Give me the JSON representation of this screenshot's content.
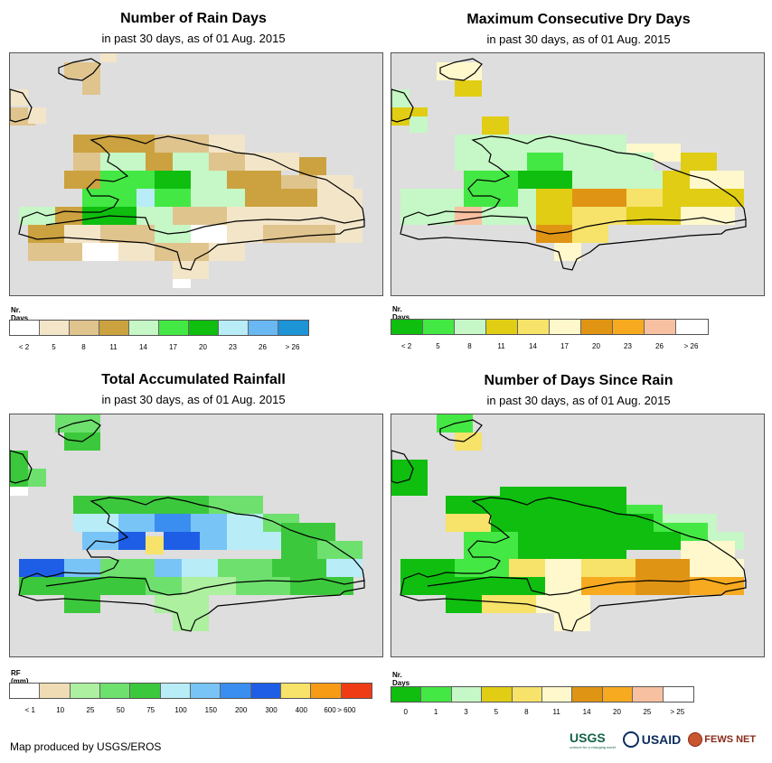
{
  "panels": [
    {
      "id": "rain-days",
      "title": "Number of Rain Days",
      "subtitle": "in past 30 days, as of 01 Aug. 2015",
      "legend_title": "Nr. Days",
      "legend_colors": [
        "#ffffff",
        "#f3e5c8",
        "#e0c48e",
        "#cba23f",
        "#c6f7c6",
        "#44e844",
        "#0fbe0f",
        "#b8ecf7",
        "#6ab8f2",
        "#1c94d6"
      ],
      "legend_labels": [
        "< 2",
        "5",
        "8",
        "11",
        "14",
        "17",
        "20",
        "23",
        "26",
        "> 26"
      ],
      "legend_mode": "center"
    },
    {
      "id": "dry-days",
      "title": "Maximum Consecutive Dry Days",
      "subtitle": "in past 30 days, as of 01 Aug. 2015",
      "legend_title": "Nr. Days",
      "legend_colors": [
        "#0fbe0f",
        "#44e844",
        "#c6f7c6",
        "#e0cd14",
        "#f7e26a",
        "#fff8cc",
        "#e09414",
        "#f7aa20",
        "#f7c0a0",
        "#ffffff"
      ],
      "legend_labels": [
        "< 2",
        "5",
        "8",
        "11",
        "14",
        "17",
        "20",
        "23",
        "26",
        "> 26"
      ],
      "legend_mode": "center"
    },
    {
      "id": "rainfall",
      "title": "Total Accumulated Rainfall",
      "subtitle": "in past 30 days, as of 01 Aug. 2015",
      "legend_title": "RF (mm)",
      "legend_colors": [
        "#ffffff",
        "#f0dcb4",
        "#acf0a0",
        "#6ee06e",
        "#3cc83c",
        "#b8ecf7",
        "#78c4f7",
        "#3a8ef0",
        "#1e5ee6",
        "#f7e26a",
        "#f79a14",
        "#f03c14"
      ],
      "legend_labels": [
        "< 1",
        "10",
        "25",
        "50",
        "75",
        "100",
        "150",
        "200",
        "300",
        "400",
        "600",
        "> 600"
      ],
      "legend_mode": "rainfall"
    },
    {
      "id": "since-rain",
      "title": "Number of Days Since Rain",
      "subtitle": "in past 30 days, as of 01 Aug. 2015",
      "legend_title": "Nr. Days",
      "legend_colors": [
        "#0fbe0f",
        "#44e844",
        "#c6f7c6",
        "#e0cd14",
        "#f7e26a",
        "#fff8cc",
        "#e09414",
        "#f7aa20",
        "#f7c0a0",
        "#ffffff"
      ],
      "legend_labels": [
        "0",
        "1",
        "3",
        "5",
        "8",
        "11",
        "14",
        "20",
        "25",
        "> 25"
      ],
      "legend_mode": "center"
    }
  ],
  "credit": "Map produced by USGS/EROS",
  "logos": {
    "usgs": "USGS",
    "usgs_tag": "science for a changing world",
    "usaid": "USAID",
    "fews": "FEWS NET"
  }
}
